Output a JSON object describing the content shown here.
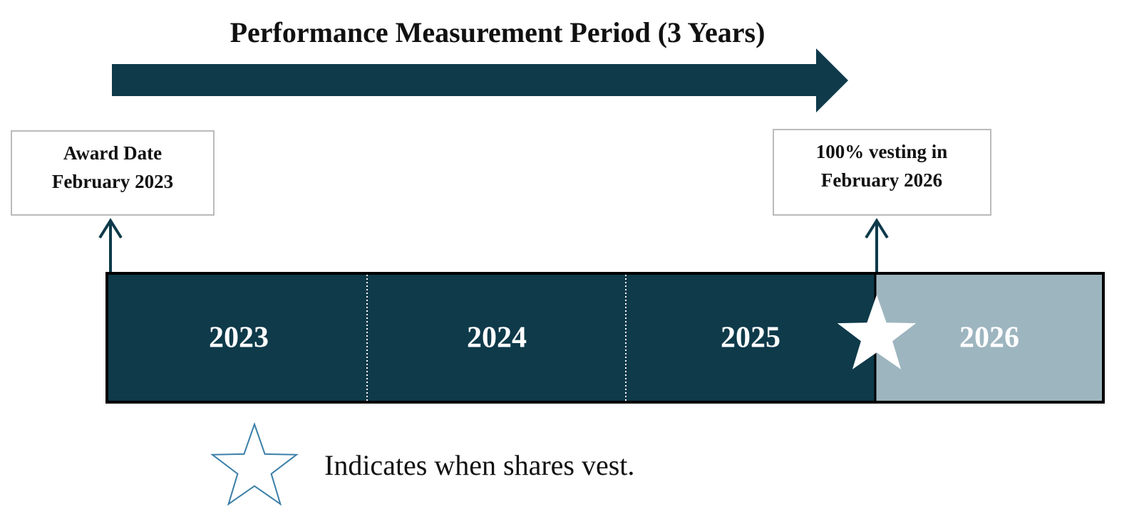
{
  "header": {
    "title": "Performance Measurement Period (3 Years)"
  },
  "boxes": [
    {
      "lines": [
        "Award Date",
        "February 2023"
      ]
    },
    {
      "lines": [
        "100% vesting in",
        "February 2026"
      ]
    }
  ],
  "timeline": {
    "years": [
      "2023",
      "2024",
      "2025",
      "2026"
    ]
  },
  "legend": {
    "text": "Indicates when shares vest."
  }
}
